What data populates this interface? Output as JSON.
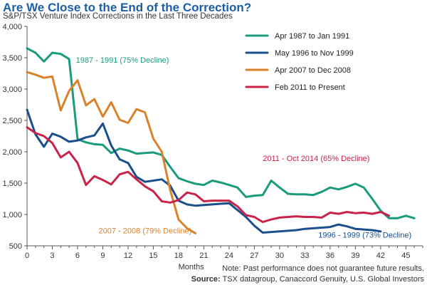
{
  "title": "Are We Close to the End of the Correction?",
  "subtitle": "S&P/TSX Venture Index Corrections in the Last Three Decades",
  "footer": {
    "note": "Note: Past performance does not guarantee future results.",
    "source_label": "Source:",
    "source_text": "TSX datagroup, Canaccord Genuity, U.S. Global Investors"
  },
  "chart_data": {
    "type": "line",
    "xlabel": "Months",
    "ylabel": "",
    "xlim": [
      0,
      47
    ],
    "ylim": [
      500,
      4000
    ],
    "x_ticks": [
      0,
      3,
      6,
      9,
      12,
      15,
      18,
      21,
      24,
      27,
      30,
      33,
      36,
      39,
      42,
      45
    ],
    "y_ticks": [
      500,
      1000,
      1500,
      2000,
      2500,
      3000,
      3500,
      4000
    ],
    "y_tick_labels": [
      "500",
      "1,000",
      "1,500",
      "2,000",
      "2,500",
      "3,000",
      "3,500",
      "4,000"
    ],
    "grid": false,
    "legend_position": "top-right",
    "series": [
      {
        "name": "Apr 1987 to Jan 1991",
        "color": "#1a9b7c",
        "points": [
          [
            0,
            3650
          ],
          [
            1,
            3580
          ],
          [
            2,
            3440
          ],
          [
            3,
            3580
          ],
          [
            4,
            3560
          ],
          [
            5,
            3480
          ],
          [
            6,
            2200
          ],
          [
            7,
            2150
          ],
          [
            8,
            2120
          ],
          [
            9,
            2110
          ],
          [
            10,
            1980
          ],
          [
            11,
            2050
          ],
          [
            12,
            2020
          ],
          [
            13,
            1970
          ],
          [
            14,
            1980
          ],
          [
            15,
            1990
          ],
          [
            16,
            1950
          ],
          [
            17,
            1760
          ],
          [
            18,
            1580
          ],
          [
            19,
            1530
          ],
          [
            20,
            1490
          ],
          [
            21,
            1470
          ],
          [
            22,
            1540
          ],
          [
            23,
            1510
          ],
          [
            24,
            1470
          ],
          [
            25,
            1430
          ],
          [
            26,
            1280
          ],
          [
            27,
            1300
          ],
          [
            28,
            1310
          ],
          [
            29,
            1540
          ],
          [
            30,
            1430
          ],
          [
            31,
            1330
          ],
          [
            32,
            1320
          ],
          [
            33,
            1320
          ],
          [
            34,
            1310
          ],
          [
            35,
            1360
          ],
          [
            36,
            1430
          ],
          [
            37,
            1400
          ],
          [
            38,
            1440
          ],
          [
            39,
            1490
          ],
          [
            40,
            1430
          ],
          [
            41,
            1250
          ],
          [
            42,
            1060
          ],
          [
            43,
            940
          ],
          [
            44,
            940
          ],
          [
            45,
            980
          ],
          [
            46,
            940
          ]
        ]
      },
      {
        "name": "May 1996 to Nov 1999",
        "color": "#1b4f8c",
        "points": [
          [
            0,
            2670
          ],
          [
            1,
            2280
          ],
          [
            2,
            2080
          ],
          [
            3,
            2290
          ],
          [
            4,
            2240
          ],
          [
            5,
            2160
          ],
          [
            6,
            2180
          ],
          [
            7,
            2230
          ],
          [
            8,
            2260
          ],
          [
            9,
            2450
          ],
          [
            10,
            2100
          ],
          [
            11,
            1880
          ],
          [
            12,
            1820
          ],
          [
            13,
            1600
          ],
          [
            14,
            1520
          ],
          [
            15,
            1540
          ],
          [
            16,
            1560
          ],
          [
            17,
            1460
          ],
          [
            18,
            1220
          ],
          [
            19,
            1160
          ],
          [
            20,
            1140
          ],
          [
            21,
            1150
          ],
          [
            22,
            1160
          ],
          [
            23,
            1170
          ],
          [
            24,
            1180
          ],
          [
            25,
            1070
          ],
          [
            26,
            960
          ],
          [
            27,
            820
          ],
          [
            28,
            710
          ],
          [
            29,
            720
          ],
          [
            30,
            730
          ],
          [
            31,
            740
          ],
          [
            32,
            750
          ],
          [
            33,
            770
          ],
          [
            34,
            780
          ],
          [
            35,
            790
          ],
          [
            36,
            800
          ],
          [
            37,
            840
          ],
          [
            38,
            810
          ],
          [
            39,
            770
          ],
          [
            40,
            760
          ],
          [
            41,
            750
          ],
          [
            42,
            730
          ]
        ]
      },
      {
        "name": "Apr 2007 to Dec 2008",
        "color": "#d9822b",
        "points": [
          [
            0,
            3270
          ],
          [
            1,
            3230
          ],
          [
            2,
            3180
          ],
          [
            3,
            3200
          ],
          [
            4,
            2660
          ],
          [
            5,
            2970
          ],
          [
            6,
            3140
          ],
          [
            7,
            2740
          ],
          [
            8,
            2840
          ],
          [
            9,
            2560
          ],
          [
            10,
            2790
          ],
          [
            11,
            2510
          ],
          [
            12,
            2460
          ],
          [
            13,
            2680
          ],
          [
            14,
            2630
          ],
          [
            15,
            2210
          ],
          [
            16,
            2000
          ],
          [
            17,
            1390
          ],
          [
            18,
            920
          ],
          [
            19,
            780
          ],
          [
            20,
            700
          ]
        ]
      },
      {
        "name": "Feb 2011 to Present",
        "color": "#c8244a",
        "points": [
          [
            0,
            2390
          ],
          [
            1,
            2300
          ],
          [
            2,
            2250
          ],
          [
            3,
            2140
          ],
          [
            4,
            1910
          ],
          [
            5,
            2000
          ],
          [
            6,
            1820
          ],
          [
            7,
            1470
          ],
          [
            8,
            1610
          ],
          [
            9,
            1550
          ],
          [
            10,
            1480
          ],
          [
            11,
            1640
          ],
          [
            12,
            1680
          ],
          [
            13,
            1560
          ],
          [
            14,
            1450
          ],
          [
            15,
            1370
          ],
          [
            16,
            1210
          ],
          [
            17,
            1190
          ],
          [
            18,
            1230
          ],
          [
            19,
            1350
          ],
          [
            20,
            1320
          ],
          [
            21,
            1210
          ],
          [
            22,
            1220
          ],
          [
            23,
            1220
          ],
          [
            24,
            1220
          ],
          [
            25,
            1130
          ],
          [
            26,
            990
          ],
          [
            27,
            960
          ],
          [
            28,
            880
          ],
          [
            29,
            920
          ],
          [
            30,
            950
          ],
          [
            31,
            960
          ],
          [
            32,
            970
          ],
          [
            33,
            960
          ],
          [
            34,
            960
          ],
          [
            35,
            950
          ],
          [
            36,
            1030
          ],
          [
            37,
            1010
          ],
          [
            38,
            1040
          ],
          [
            39,
            1020
          ],
          [
            40,
            1030
          ],
          [
            41,
            1010
          ],
          [
            42,
            1040
          ],
          [
            43,
            980
          ]
        ]
      }
    ],
    "annotations": [
      {
        "text": "1987 - 1991 (75% Decline)",
        "series": 0,
        "x": 5.8,
        "y": 3420
      },
      {
        "text": "2011 - Oct 2014 (65% Decline)",
        "series": 3,
        "x": 28,
        "y": 1850
      },
      {
        "text": "2007 - 2008 (79% Decline)",
        "series": 2,
        "x": 8.5,
        "y": 700
      },
      {
        "text": "1996 - 1999 (73% Decline)",
        "series": 1,
        "x": 34.6,
        "y": 630
      }
    ]
  }
}
